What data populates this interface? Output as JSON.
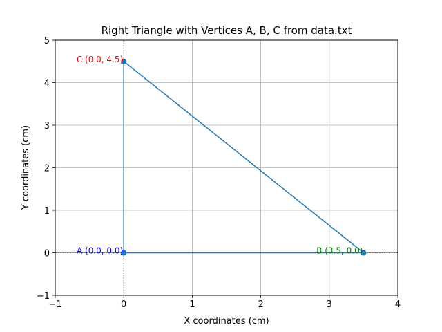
{
  "chart_data": {
    "type": "line",
    "title": "Right Triangle with Vertices A, B, C from data.txt",
    "xlabel": "X coordinates (cm)",
    "ylabel": "Y coordinates (cm)",
    "xlim": [
      -1,
      4
    ],
    "ylim": [
      -1,
      5
    ],
    "xticks": [
      -1,
      0,
      1,
      2,
      3,
      4
    ],
    "xtick_labels": [
      "−1",
      "0",
      "1",
      "2",
      "3",
      "4"
    ],
    "yticks": [
      -1,
      0,
      1,
      2,
      3,
      4,
      5
    ],
    "ytick_labels": [
      "−1",
      "0",
      "1",
      "2",
      "3",
      "4",
      "5"
    ],
    "grid": true,
    "reference_lines": {
      "x": 0,
      "y": 0,
      "style": "dashed",
      "color": "#000000"
    },
    "line_color": "#1f77b4",
    "points": [
      {
        "id": "A",
        "x": 0.0,
        "y": 0.0,
        "label": "A (0.0, 0.0)",
        "label_color": "#0000ff"
      },
      {
        "id": "B",
        "x": 3.5,
        "y": 0.0,
        "label": "B (3.5, 0.0)",
        "label_color": "#008000"
      },
      {
        "id": "C",
        "x": 0.0,
        "y": 4.5,
        "label": "C (0.0, 4.5)",
        "label_color": "#ff0000"
      }
    ],
    "path": [
      "A",
      "B",
      "C",
      "A"
    ]
  }
}
